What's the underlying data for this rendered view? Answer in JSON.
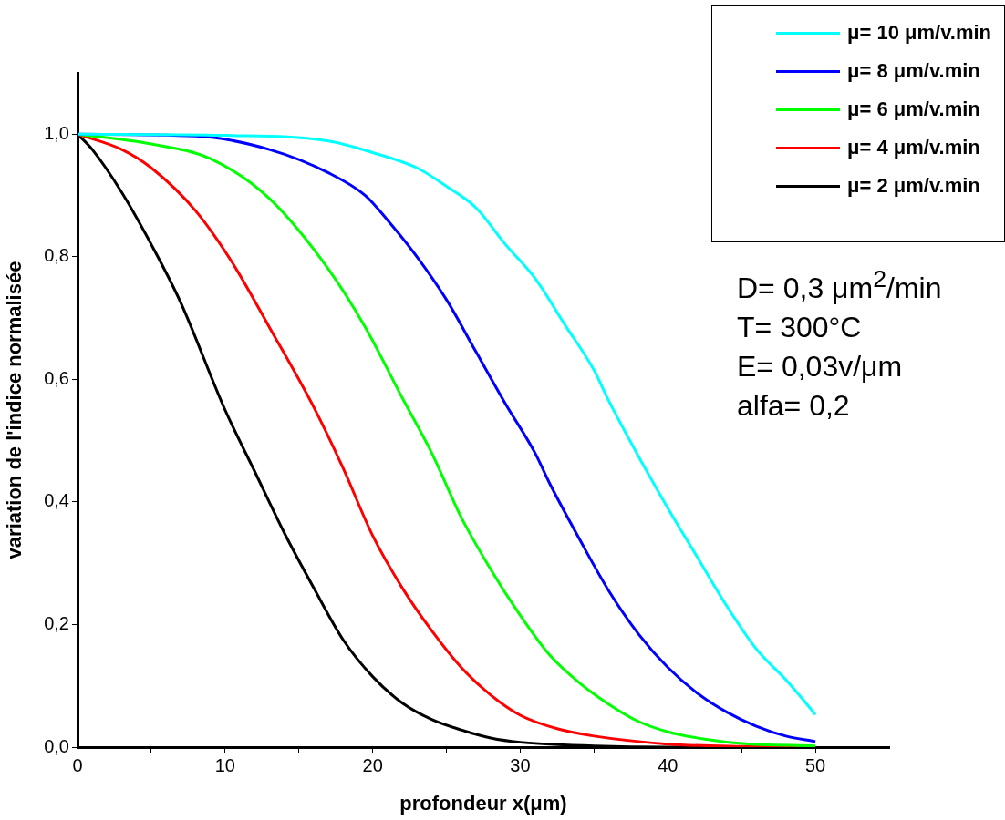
{
  "chart_data": {
    "type": "line",
    "xlabel": "profondeur x(μm)",
    "ylabel": "variation de l'indice normalisée",
    "xlim": [
      0,
      55
    ],
    "ylim": [
      0,
      1.1
    ],
    "xticks": [
      0,
      {
        "value": 5,
        "label": null
      },
      10,
      {
        "value": 15,
        "label": null
      },
      20,
      {
        "value": 25,
        "label": null
      },
      30,
      {
        "value": 35,
        "label": null
      },
      40,
      {
        "value": 45,
        "label": null
      },
      50
    ],
    "yticks": [
      {
        "value": 0,
        "label": "0,0"
      },
      {
        "value": 0.2,
        "label": "0,2"
      },
      {
        "value": 0.4,
        "label": "0,4"
      },
      {
        "value": 0.6,
        "label": "0,6"
      },
      {
        "value": 0.8,
        "label": "0,8"
      },
      {
        "value": 1,
        "label": "1,0"
      }
    ],
    "grid": false,
    "legend": "top right",
    "marker": "none",
    "line_style": "solid",
    "annotations": [
      "D= 0,3 μm$^{2}$/min",
      "T= 300°C",
      "E= 0,03v/μm",
      "alfa= 0,2"
    ],
    "series": [
      {
        "name": "μ= 10 μm/v.min",
        "color": "#00ffff",
        "x": [
          0,
          10,
          17,
          20,
          23,
          25,
          27,
          29,
          31,
          33,
          35,
          36,
          38,
          40,
          42,
          44,
          46,
          48,
          49,
          50
        ],
        "values": [
          1,
          0.998,
          0.989,
          0.97,
          0.945,
          0.915,
          0.88,
          0.82,
          0.765,
          0.69,
          0.615,
          0.565,
          0.475,
          0.39,
          0.31,
          0.23,
          0.16,
          0.11,
          0.082,
          0.053
        ]
      },
      {
        "name": "μ= 8 μm/v.min",
        "color": "#0000ff",
        "x": [
          0,
          8,
          13,
          17,
          19.5,
          21,
          23,
          25,
          27,
          29,
          31,
          32,
          34,
          36,
          38,
          40,
          42,
          44,
          46,
          48,
          50
        ],
        "values": [
          1,
          0.997,
          0.975,
          0.937,
          0.9,
          0.86,
          0.8,
          0.73,
          0.645,
          0.56,
          0.48,
          0.43,
          0.34,
          0.255,
          0.185,
          0.13,
          0.088,
          0.057,
          0.034,
          0.018,
          0.009
        ]
      },
      {
        "name": "μ= 6 μm/v.min",
        "color": "#00ff00",
        "x": [
          0,
          5,
          9,
          13,
          17,
          19.5,
          22,
          24,
          26,
          28,
          30,
          32,
          34,
          36,
          38,
          40,
          42.5,
          45,
          50
        ],
        "values": [
          1,
          0.984,
          0.96,
          0.895,
          0.78,
          0.685,
          0.57,
          0.48,
          0.375,
          0.29,
          0.215,
          0.15,
          0.105,
          0.07,
          0.042,
          0.025,
          0.013,
          0.006,
          0.002
        ]
      },
      {
        "name": "μ= 4 μm/v.min",
        "color": "#ff0000",
        "x": [
          0,
          3,
          5,
          8,
          10.5,
          13,
          16,
          18,
          20,
          22,
          24,
          26,
          28,
          30,
          32.5,
          35,
          40,
          45,
          50
        ],
        "values": [
          1,
          0.975,
          0.945,
          0.875,
          0.79,
          0.685,
          0.555,
          0.455,
          0.345,
          0.26,
          0.19,
          0.13,
          0.085,
          0.052,
          0.03,
          0.018,
          0.005,
          0.001,
          0
        ]
      },
      {
        "name": "μ= 2 μm/v.min",
        "color": "#000000",
        "x": [
          0,
          1,
          3,
          5,
          7,
          10,
          12,
          14,
          16,
          18,
          20,
          22,
          24,
          26,
          28,
          30,
          35,
          40,
          50
        ],
        "values": [
          1,
          0.975,
          0.905,
          0.82,
          0.725,
          0.55,
          0.45,
          0.35,
          0.26,
          0.175,
          0.115,
          0.072,
          0.045,
          0.028,
          0.015,
          0.008,
          0.002,
          0,
          0
        ]
      }
    ]
  }
}
